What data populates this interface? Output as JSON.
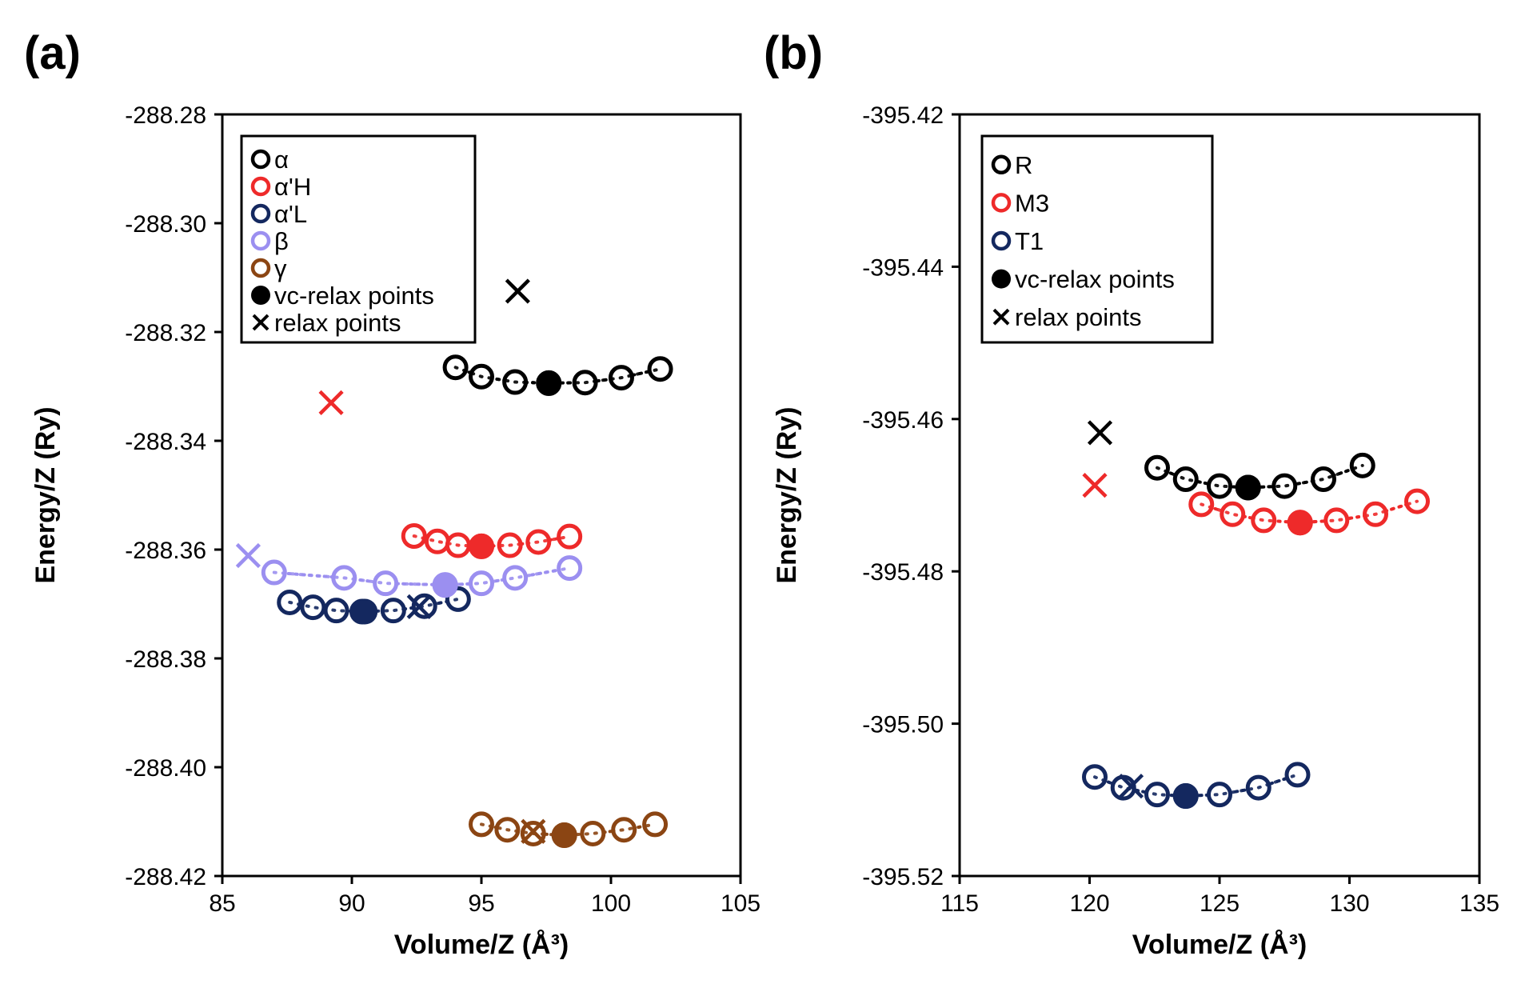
{
  "chart_data": [
    {
      "type": "scatter",
      "panel_label": "(a)",
      "xlabel": "Volume/Z (Å³)",
      "ylabel": "Energy/Z (Ry)",
      "xlim": [
        85,
        105
      ],
      "ylim": [
        -288.42,
        -288.28
      ],
      "xticks": [
        85,
        90,
        95,
        100,
        105
      ],
      "yticks": [
        -288.28,
        -288.3,
        -288.32,
        -288.34,
        -288.36,
        -288.38,
        -288.4,
        -288.42
      ],
      "xtick_labels": [
        "85",
        "90",
        "95",
        "100",
        "105"
      ],
      "ytick_labels": [
        "-288.28",
        "-288.30",
        "-288.32",
        "-288.34",
        "-288.36",
        "-288.38",
        "-288.40",
        "-288.42"
      ],
      "grid": false,
      "legend_position": "top-left",
      "legend": [
        {
          "label": "α",
          "marker": "open-circle",
          "color": "#000000"
        },
        {
          "label": "α'H",
          "marker": "open-circle",
          "color": "#ee2a2a"
        },
        {
          "label": "α'L",
          "marker": "open-circle",
          "color": "#14285f"
        },
        {
          "label": "β",
          "marker": "open-circle",
          "color": "#9b8ff0"
        },
        {
          "label": "γ",
          "marker": "open-circle",
          "color": "#8b4513"
        },
        {
          "label": "vc-relax points",
          "marker": "filled-circle",
          "color": "#000000"
        },
        {
          "label": "relax points",
          "marker": "cross",
          "color": "#000000"
        }
      ],
      "series": [
        {
          "name": "α",
          "color": "#000000",
          "x": [
            94.0,
            95.0,
            96.3,
            97.6,
            99.0,
            100.4,
            101.9
          ],
          "y": [
            -288.3265,
            -288.3282,
            -288.3292,
            -288.3294,
            -288.3293,
            -288.3284,
            -288.3268
          ],
          "vc_relax": {
            "x": 97.6,
            "y": -288.3294
          },
          "relax": {
            "x": 96.4,
            "y": -288.3125
          }
        },
        {
          "name": "α'H",
          "color": "#ee2a2a",
          "x": [
            92.4,
            93.3,
            94.1,
            95.0,
            96.1,
            97.2,
            98.4
          ],
          "y": [
            -288.3575,
            -288.3585,
            -288.3592,
            -288.3594,
            -288.3592,
            -288.3586,
            -288.3576
          ],
          "vc_relax": {
            "x": 95.0,
            "y": -288.3594
          },
          "relax": {
            "x": 89.2,
            "y": -288.333
          }
        },
        {
          "name": "α'L",
          "color": "#14285f",
          "x": [
            87.6,
            88.5,
            89.4,
            90.4,
            91.6,
            92.8,
            94.1
          ],
          "y": [
            -288.3697,
            -288.3706,
            -288.3712,
            -288.3714,
            -288.3712,
            -288.3704,
            -288.3691
          ],
          "vc_relax": {
            "x": 90.5,
            "y": -288.3714
          },
          "relax": {
            "x": 92.6,
            "y": -288.3705
          }
        },
        {
          "name": "β",
          "color": "#9b8ff0",
          "x": [
            87.0,
            89.7,
            91.3,
            93.6,
            95.0,
            96.3,
            98.4
          ],
          "y": [
            -288.3642,
            -288.3652,
            -288.3662,
            -288.3665,
            -288.3662,
            -288.3652,
            -288.3634
          ],
          "vc_relax": {
            "x": 93.6,
            "y": -288.3665
          },
          "relax": {
            "x": 86.0,
            "y": -288.3611
          }
        },
        {
          "name": "γ",
          "color": "#8b4513",
          "x": [
            95.0,
            96.0,
            97.0,
            98.2,
            99.3,
            100.5,
            101.7
          ],
          "y": [
            -288.4105,
            -288.4115,
            -288.4122,
            -288.4125,
            -288.4122,
            -288.4115,
            -288.4105
          ],
          "vc_relax": {
            "x": 98.2,
            "y": -288.4125
          },
          "relax": {
            "x": 97.0,
            "y": -288.4118
          }
        }
      ]
    },
    {
      "type": "scatter",
      "panel_label": "(b)",
      "xlabel": "Volume/Z (Å³)",
      "ylabel": "Energy/Z (Ry)",
      "xlim": [
        115,
        135
      ],
      "ylim": [
        -395.52,
        -395.42
      ],
      "xticks": [
        115,
        120,
        125,
        130,
        135
      ],
      "yticks": [
        -395.42,
        -395.44,
        -395.46,
        -395.48,
        -395.5,
        -395.52
      ],
      "xtick_labels": [
        "115",
        "120",
        "125",
        "130",
        "135"
      ],
      "ytick_labels": [
        "-395.42",
        "-395.44",
        "-395.46",
        "-395.48",
        "-395.50",
        "-395.52"
      ],
      "grid": false,
      "legend_position": "top-left",
      "legend": [
        {
          "label": "R",
          "marker": "open-circle",
          "color": "#000000"
        },
        {
          "label": "M3",
          "marker": "open-circle",
          "color": "#ee2a2a"
        },
        {
          "label": "T1",
          "marker": "open-circle",
          "color": "#14285f"
        },
        {
          "label": "vc-relax points",
          "marker": "filled-circle",
          "color": "#000000"
        },
        {
          "label": "relax points",
          "marker": "cross",
          "color": "#000000"
        }
      ],
      "series": [
        {
          "name": "R",
          "color": "#000000",
          "x": [
            122.6,
            123.7,
            125.0,
            126.1,
            127.5,
            129.0,
            130.5
          ],
          "y": [
            -395.4664,
            -395.4679,
            -395.4688,
            -395.469,
            -395.4688,
            -395.4679,
            -395.4661
          ],
          "vc_relax": {
            "x": 126.1,
            "y": -395.469
          },
          "relax": {
            "x": 120.4,
            "y": -395.4618
          }
        },
        {
          "name": "M3",
          "color": "#ee2a2a",
          "x": [
            124.3,
            125.5,
            126.7,
            128.1,
            129.5,
            131.0,
            132.6
          ],
          "y": [
            -395.4712,
            -395.4725,
            -395.4733,
            -395.4736,
            -395.4733,
            -395.4725,
            -395.4708
          ],
          "vc_relax": {
            "x": 128.1,
            "y": -395.4736
          },
          "relax": {
            "x": 120.2,
            "y": -395.4687
          }
        },
        {
          "name": "T1",
          "color": "#14285f",
          "x": [
            120.2,
            121.3,
            122.6,
            123.7,
            125.0,
            126.5,
            128.0
          ],
          "y": [
            -395.507,
            -395.5084,
            -395.5093,
            -395.5095,
            -395.5093,
            -395.5084,
            -395.5067
          ],
          "vc_relax": {
            "x": 123.7,
            "y": -395.5095
          },
          "relax": {
            "x": 121.6,
            "y": -395.5082
          }
        }
      ]
    }
  ]
}
